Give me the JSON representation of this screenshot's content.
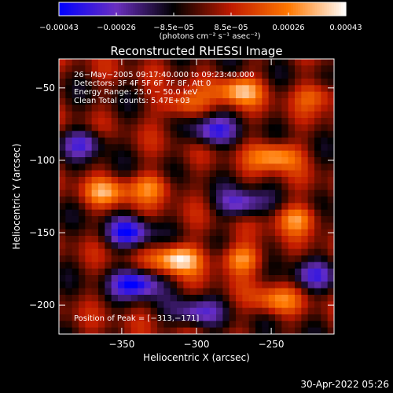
{
  "chart_data": {
    "type": "heatmap",
    "title": "Reconstructed RHESSI Image",
    "xlabel": "Heliocentric X (arcsec)",
    "ylabel": "Heliocentric Y (arcsec)",
    "xlim": [
      -392,
      -208
    ],
    "ylim": [
      -220,
      -30
    ],
    "x_ticks": [
      {
        "value": -350,
        "label": "−350"
      },
      {
        "value": -300,
        "label": "−300"
      },
      {
        "value": -250,
        "label": "−250"
      }
    ],
    "y_ticks": [
      {
        "value": -50,
        "label": "−50"
      },
      {
        "value": -100,
        "label": "−100"
      },
      {
        "value": -150,
        "label": "−150"
      },
      {
        "value": -200,
        "label": "−200"
      }
    ],
    "colorbar": {
      "range": [
        -0.00043,
        0.00043
      ],
      "ticks": [
        "−0.00043",
        "−0.00026",
        "−8.5e−05",
        "8.5e−05",
        "0.00026",
        "0.00043"
      ],
      "unit": "(photons cm⁻² s⁻¹ asec⁻²)",
      "stops": [
        "#0000ff",
        "#6a2fc0",
        "#000000",
        "#c01a00",
        "#ff7800",
        "#ffffff"
      ]
    },
    "annotations": [
      "26−May−2005 09:17:40.000 to 09:23:40.000",
      "Detectors: 3F 4F 5F 6F 7F 8F, Att 0",
      "Energy Range: 25.0 − 50.0 keV",
      "Clean    Total counts: 5.47E+03"
    ],
    "peak_label": "Position of Peak = [−313,−171]",
    "peak": {
      "x": -313,
      "y": -171,
      "value": 0.00043
    },
    "hotspots": [
      {
        "x": -313,
        "y": -168,
        "value": 0.00043
      },
      {
        "x": -270,
        "y": -168,
        "value": 0.0003
      },
      {
        "x": -247,
        "y": -97,
        "value": 0.00033
      },
      {
        "x": -233,
        "y": -140,
        "value": 0.00026
      },
      {
        "x": -272,
        "y": -52,
        "value": 0.00032
      },
      {
        "x": -310,
        "y": -62,
        "value": 0.00025
      },
      {
        "x": -360,
        "y": -122,
        "value": 0.00025
      },
      {
        "x": -330,
        "y": -118,
        "value": 0.00022
      },
      {
        "x": -248,
        "y": -197,
        "value": 0.00024
      },
      {
        "x": -218,
        "y": -55,
        "value": 0.0002
      },
      {
        "x": -345,
        "y": -150,
        "value": -0.00035
      },
      {
        "x": -340,
        "y": -185,
        "value": -0.00043
      },
      {
        "x": -290,
        "y": -80,
        "value": -0.00032
      },
      {
        "x": -270,
        "y": -130,
        "value": -0.0003
      },
      {
        "x": -375,
        "y": -88,
        "value": -0.00026
      },
      {
        "x": -300,
        "y": -205,
        "value": -0.00026
      },
      {
        "x": -222,
        "y": -180,
        "value": -0.00024
      }
    ]
  },
  "timestamp": "30-Apr-2022 05:26"
}
